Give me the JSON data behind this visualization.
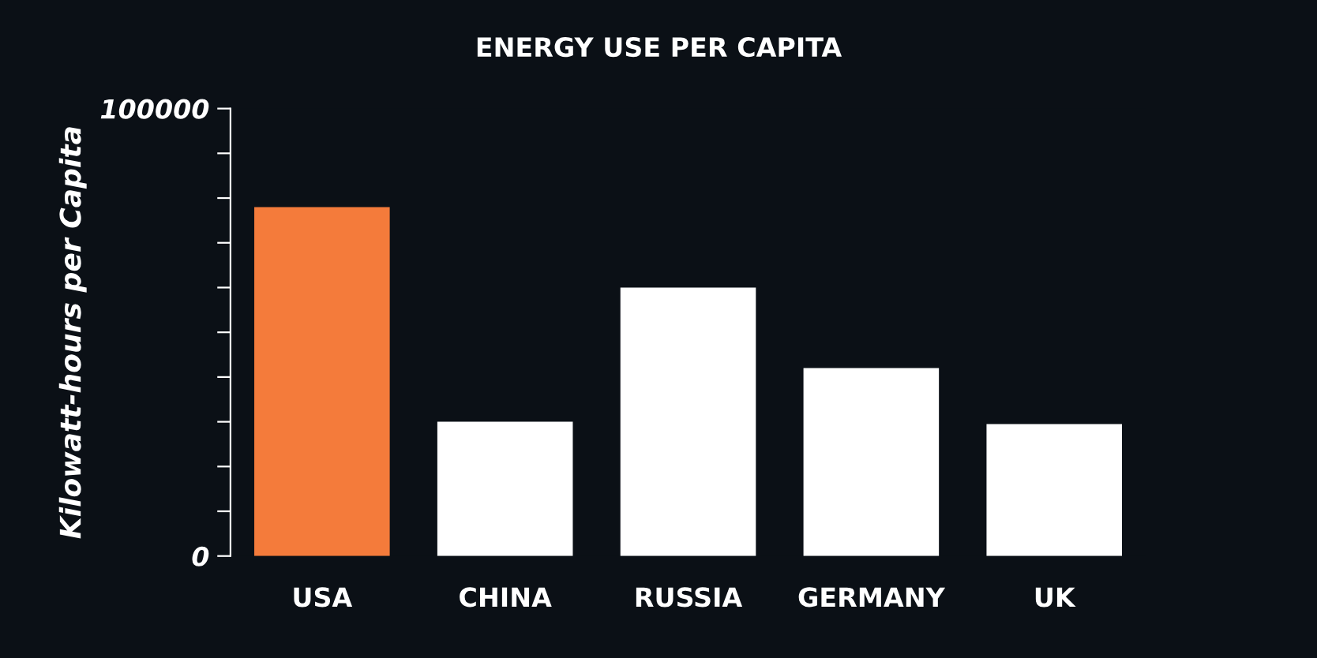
{
  "chart_data": {
    "type": "bar",
    "title": "ENERGY USE PER CAPITA",
    "ylabel": "Kilowatt-hours per Capita",
    "categories": [
      "USA",
      "CHINA",
      "RUSSIA",
      "GERMANY",
      "UK"
    ],
    "values": [
      78000,
      30000,
      60000,
      42000,
      29500
    ],
    "colors": [
      "#f47b3b",
      "#ffffff",
      "#ffffff",
      "#ffffff",
      "#ffffff"
    ],
    "ylim": [
      0,
      100000
    ],
    "yticks": [
      0,
      {
        "value": 10000,
        "label": null
      },
      {
        "value": 20000,
        "label": null
      },
      {
        "value": 30000,
        "label": null
      },
      {
        "value": 40000,
        "label": null
      },
      {
        "value": 50000,
        "label": null
      },
      {
        "value": 60000,
        "label": null
      },
      {
        "value": 70000,
        "label": null
      },
      {
        "value": 80000,
        "label": null
      },
      {
        "value": 90000,
        "label": null
      },
      100000
    ],
    "grid": false,
    "legend": false
  }
}
